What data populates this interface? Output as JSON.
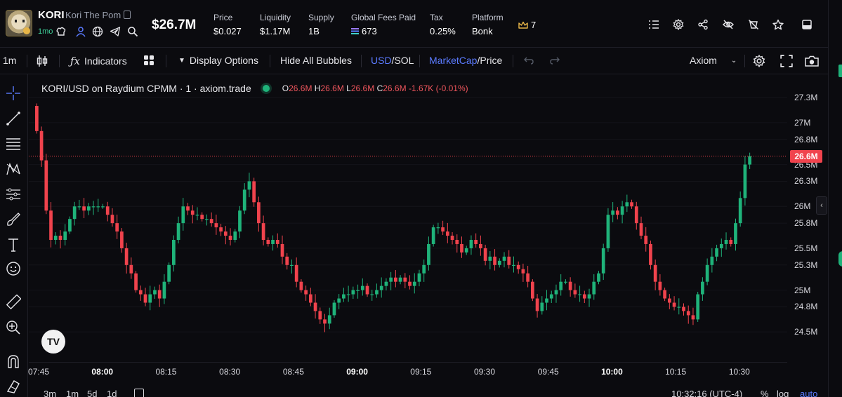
{
  "header": {
    "ticker": "KORI",
    "token_name": "Kori The Pom",
    "age": "1mo",
    "market_cap": "$26.7M",
    "stats": [
      {
        "label": "Price",
        "value": "$0.027"
      },
      {
        "label": "Liquidity",
        "value": "$1.17M"
      },
      {
        "label": "Supply",
        "value": "1B"
      },
      {
        "label": "Global Fees Paid",
        "value": "673",
        "icon": "solana-icon"
      },
      {
        "label": "Tax",
        "value": "0.25%"
      },
      {
        "label": "Platform",
        "value": "Bonk"
      }
    ],
    "crown_count": "7",
    "right_icons": [
      "list-icon",
      "gear-icon",
      "share-icon",
      "eye-off-icon",
      "no-token-icon",
      "star-icon",
      "window-icon"
    ]
  },
  "toolbar": {
    "interval": "1m",
    "indicators": "Indicators",
    "display_options": "Display Options",
    "hide_bubbles": "Hide All Bubbles",
    "usd": "USD",
    "sol": "SOL",
    "marketcap": "MarketCap",
    "price": "Price",
    "source": "Axiom"
  },
  "chart": {
    "symbol_title": "KORI/USD on Raydium CPMM · 1 · axiom.trade",
    "ohlc": {
      "o_label": "O",
      "o": "26.6M",
      "h_label": "H",
      "h": "26.6M",
      "l_label": "L",
      "l": "26.6M",
      "c_label": "C",
      "c": "26.6M",
      "change": "-1.67K (-0.01%)"
    },
    "current_price_tag": "26.6M",
    "time_bottom": "10:32:16 (UTC-4)",
    "logo": "TV"
  },
  "bottom": {
    "ranges": [
      "3m",
      "1m",
      "5d",
      "1d"
    ],
    "percent": "%",
    "log": "log",
    "auto": "auto"
  },
  "colors": {
    "up": "#1fb37a",
    "down": "#f0434d",
    "accent": "#5b7bff",
    "background": "#0b0b0f"
  },
  "chart_data": {
    "type": "candlestick",
    "y_unit": "market cap (USD)",
    "ylim": [
      24.36,
      27.46
    ],
    "y_ticks": [
      "27.3M",
      "27M",
      "26.8M",
      "26.5M",
      "26.3M",
      "26M",
      "25.8M",
      "25.5M",
      "25.3M",
      "25M",
      "24.8M",
      "24.5M"
    ],
    "x_ticks": [
      {
        "label": "07:45",
        "bold": false
      },
      {
        "label": "08:00",
        "bold": true
      },
      {
        "label": "08:15",
        "bold": false
      },
      {
        "label": "08:30",
        "bold": false
      },
      {
        "label": "08:45",
        "bold": false
      },
      {
        "label": "09:00",
        "bold": true
      },
      {
        "label": "09:15",
        "bold": false
      },
      {
        "label": "09:30",
        "bold": false
      },
      {
        "label": "09:45",
        "bold": false
      },
      {
        "label": "10:00",
        "bold": true
      },
      {
        "label": "10:15",
        "bold": false
      },
      {
        "label": "10:30",
        "bold": false
      }
    ],
    "x_start_time": "07:44",
    "x_end_time": "10:33",
    "current_value": 26.6,
    "close": [
      26.9,
      26.55,
      25.95,
      25.6,
      25.65,
      25.6,
      25.7,
      25.85,
      26.0,
      26.0,
      25.95,
      26.0,
      26.0,
      26.0,
      26.0,
      25.9,
      25.8,
      25.7,
      25.5,
      25.3,
      25.2,
      25.0,
      24.95,
      24.85,
      24.95,
      25.0,
      24.9,
      25.1,
      25.3,
      25.6,
      25.8,
      26.0,
      25.95,
      25.9,
      25.9,
      25.85,
      25.85,
      25.8,
      25.75,
      25.7,
      25.65,
      25.6,
      25.7,
      25.95,
      26.2,
      26.3,
      26.05,
      25.8,
      25.6,
      25.55,
      25.6,
      25.55,
      25.4,
      25.3,
      25.3,
      25.1,
      25.0,
      24.95,
      24.85,
      24.75,
      24.65,
      24.6,
      24.7,
      24.85,
      24.9,
      24.95,
      24.95,
      25.0,
      25.0,
      25.05,
      24.95,
      24.95,
      25.0,
      25.05,
      25.1,
      25.15,
      25.1,
      25.15,
      25.1,
      25.05,
      25.1,
      25.2,
      25.3,
      25.55,
      25.75,
      25.75,
      25.7,
      25.65,
      25.6,
      25.55,
      25.45,
      25.5,
      25.6,
      25.55,
      25.5,
      25.35,
      25.4,
      25.3,
      25.35,
      25.4,
      25.3,
      25.3,
      25.25,
      25.2,
      25.1,
      24.9,
      24.75,
      24.85,
      24.9,
      24.95,
      25.0,
      25.1,
      25.1,
      25.0,
      24.95,
      24.95,
      24.9,
      24.95,
      25.1,
      25.2,
      25.5,
      25.9,
      25.95,
      25.9,
      26.0,
      26.05,
      26.0,
      25.8,
      25.65,
      25.55,
      25.3,
      25.1,
      25.0,
      24.9,
      24.85,
      24.8,
      24.8,
      24.75,
      24.7,
      24.65,
      24.95,
      25.1,
      25.3,
      25.4,
      25.5,
      25.55,
      25.6,
      25.55,
      25.8,
      26.1,
      26.5,
      26.6
    ]
  }
}
